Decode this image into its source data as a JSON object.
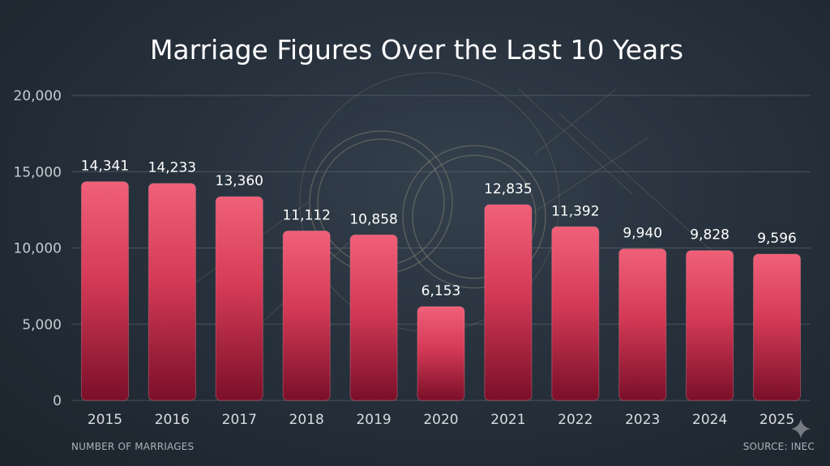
{
  "chart_data": {
    "type": "bar",
    "title": "Marriage Figures Over the Last 10 Years",
    "categories": [
      "2015",
      "2016",
      "2017",
      "2018",
      "2019",
      "2020",
      "2021",
      "2022",
      "2023",
      "2024",
      "2025"
    ],
    "values": [
      14341,
      14233,
      13360,
      11112,
      10858,
      6153,
      12835,
      11392,
      9940,
      9828,
      9596
    ],
    "value_labels": [
      "14,341",
      "14,233",
      "13,360",
      "11,112",
      "10,858",
      "6,153",
      "12,835",
      "11,392",
      "9,940",
      "9,828",
      "9,596"
    ],
    "yticks": [
      0,
      5000,
      10000,
      15000,
      20000
    ],
    "ytick_labels": [
      "0",
      "5,000",
      "10,000",
      "15,000",
      "20,000"
    ],
    "ylim": [
      0,
      20000
    ],
    "ylabel": "NUMBER OF MARRIAGES",
    "source": "SOURCE: INEC",
    "grid": true,
    "bar_color": "#e64a63",
    "bar_color_dark": "#7a0f29"
  }
}
